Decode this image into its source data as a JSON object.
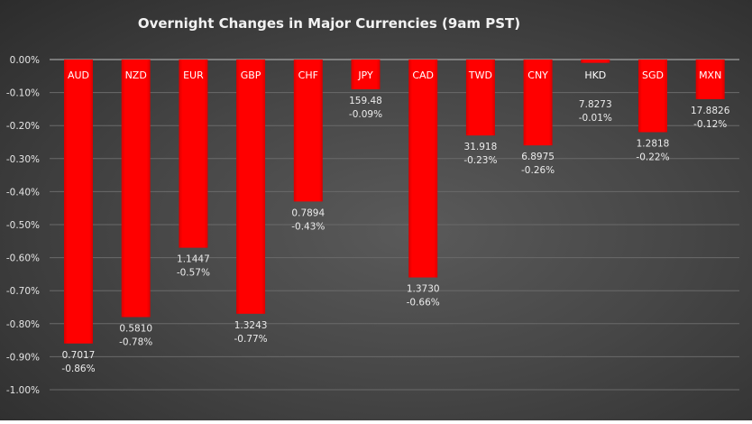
{
  "chart_data": {
    "type": "bar",
    "title": "Overnight Changes in Major Currencies (9am PST)",
    "xlabel": "",
    "ylabel": "",
    "ylim": [
      -1.0,
      0.0
    ],
    "yticks": [
      "0.00%",
      "-0.10%",
      "-0.20%",
      "-0.30%",
      "-0.40%",
      "-0.50%",
      "-0.60%",
      "-0.70%",
      "-0.80%",
      "-0.90%",
      "-1.00%"
    ],
    "grid": true,
    "legend": "none",
    "categories": [
      "AUD",
      "NZD",
      "EUR",
      "GBP",
      "CHF",
      "JPY",
      "CAD",
      "TWD",
      "CNY",
      "HKD",
      "SGD",
      "MXN"
    ],
    "values": [
      -0.86,
      -0.78,
      -0.57,
      -0.77,
      -0.43,
      -0.09,
      -0.66,
      -0.23,
      -0.26,
      -0.01,
      -0.22,
      -0.12
    ],
    "rates": [
      "0.7017",
      "0.5810",
      "1.1447",
      "1.3243",
      "0.7894",
      "159.48",
      "1.3730",
      "31.918",
      "6.8975",
      "7.8273",
      "1.2818",
      "17.8826"
    ],
    "value_labels": [
      "-0.86%",
      "-0.78%",
      "-0.57%",
      "-0.77%",
      "-0.43%",
      "-0.09%",
      "-0.66%",
      "-0.23%",
      "-0.26%",
      "-0.01%",
      "-0.22%",
      "-0.12%"
    ],
    "colors": {
      "bar": "#ff0000",
      "text": "#ffffff",
      "grid": "#6a6a6a"
    }
  }
}
